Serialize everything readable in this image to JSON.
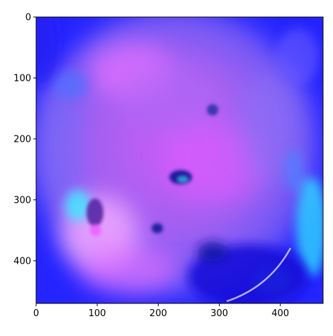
{
  "chart_data": {
    "type": "heatmap",
    "title": "",
    "xlabel": "",
    "ylabel": "",
    "xlim": [
      0,
      470
    ],
    "ylim": [
      470,
      0
    ],
    "x_ticks": [
      0,
      100,
      200,
      300,
      400
    ],
    "y_ticks": [
      0,
      100,
      200,
      300,
      400
    ],
    "grid": false,
    "legend": "none",
    "colors": {
      "background": "#2020ff",
      "magenta": "#d050ff",
      "pink": "#f0a0ff",
      "cyan": "#30e0ff",
      "dark_blue": "#1010c0",
      "violet": "#8a5cf0"
    }
  }
}
